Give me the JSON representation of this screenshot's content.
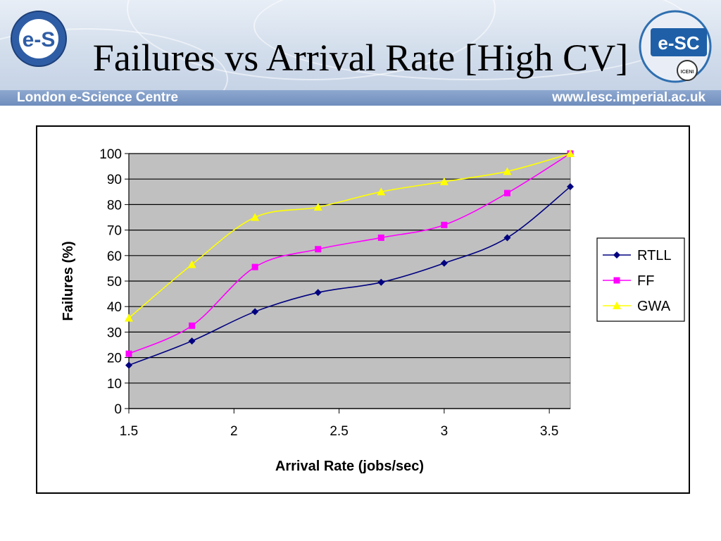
{
  "slide": {
    "title": "Failures vs Arrival Rate [High CV]",
    "footer_left": "London e-Science Centre",
    "footer_right": "www.lesc.imperial.ac.uk",
    "logo_left_text": "e-Science",
    "logo_right_text": "e-SC",
    "logo_right_ring": "London e-Science Centre",
    "logo_right_badge": "ICENI"
  },
  "colors": {
    "plot_bg": "#c0c0c0",
    "rtll": "#000080",
    "ff": "#ff00ff",
    "gwa": "#ffff00"
  },
  "chart_data": {
    "type": "line",
    "title": "",
    "xlabel": "Arrival Rate (jobs/sec)",
    "ylabel": "Failures (%)",
    "xlim": [
      1.5,
      3.6
    ],
    "ylim": [
      0,
      100
    ],
    "xticks": [
      "1.5",
      "2",
      "2.5",
      "3",
      "3.5"
    ],
    "yticks": [
      "0",
      "10",
      "20",
      "30",
      "40",
      "50",
      "60",
      "70",
      "80",
      "90",
      "100"
    ],
    "grid": "horizontal major",
    "legend": "right",
    "series": [
      {
        "name": "RTLL",
        "marker": "diamond",
        "x": [
          1.5,
          1.8,
          2.1,
          2.4,
          2.7,
          3.0,
          3.3,
          3.6
        ],
        "y": [
          17,
          26.5,
          38,
          45.5,
          49.5,
          57,
          67,
          87
        ]
      },
      {
        "name": "FF",
        "marker": "square",
        "x": [
          1.5,
          1.8,
          2.1,
          2.4,
          2.7,
          3.0,
          3.3,
          3.6
        ],
        "y": [
          21.5,
          32.5,
          55.5,
          62.5,
          67,
          72,
          84.5,
          100
        ]
      },
      {
        "name": "GWA",
        "marker": "triangle",
        "x": [
          1.5,
          1.8,
          2.1,
          2.4,
          2.7,
          3.0,
          3.3,
          3.6
        ],
        "y": [
          35.5,
          56.5,
          75,
          79,
          85,
          89,
          93,
          100
        ]
      }
    ]
  }
}
